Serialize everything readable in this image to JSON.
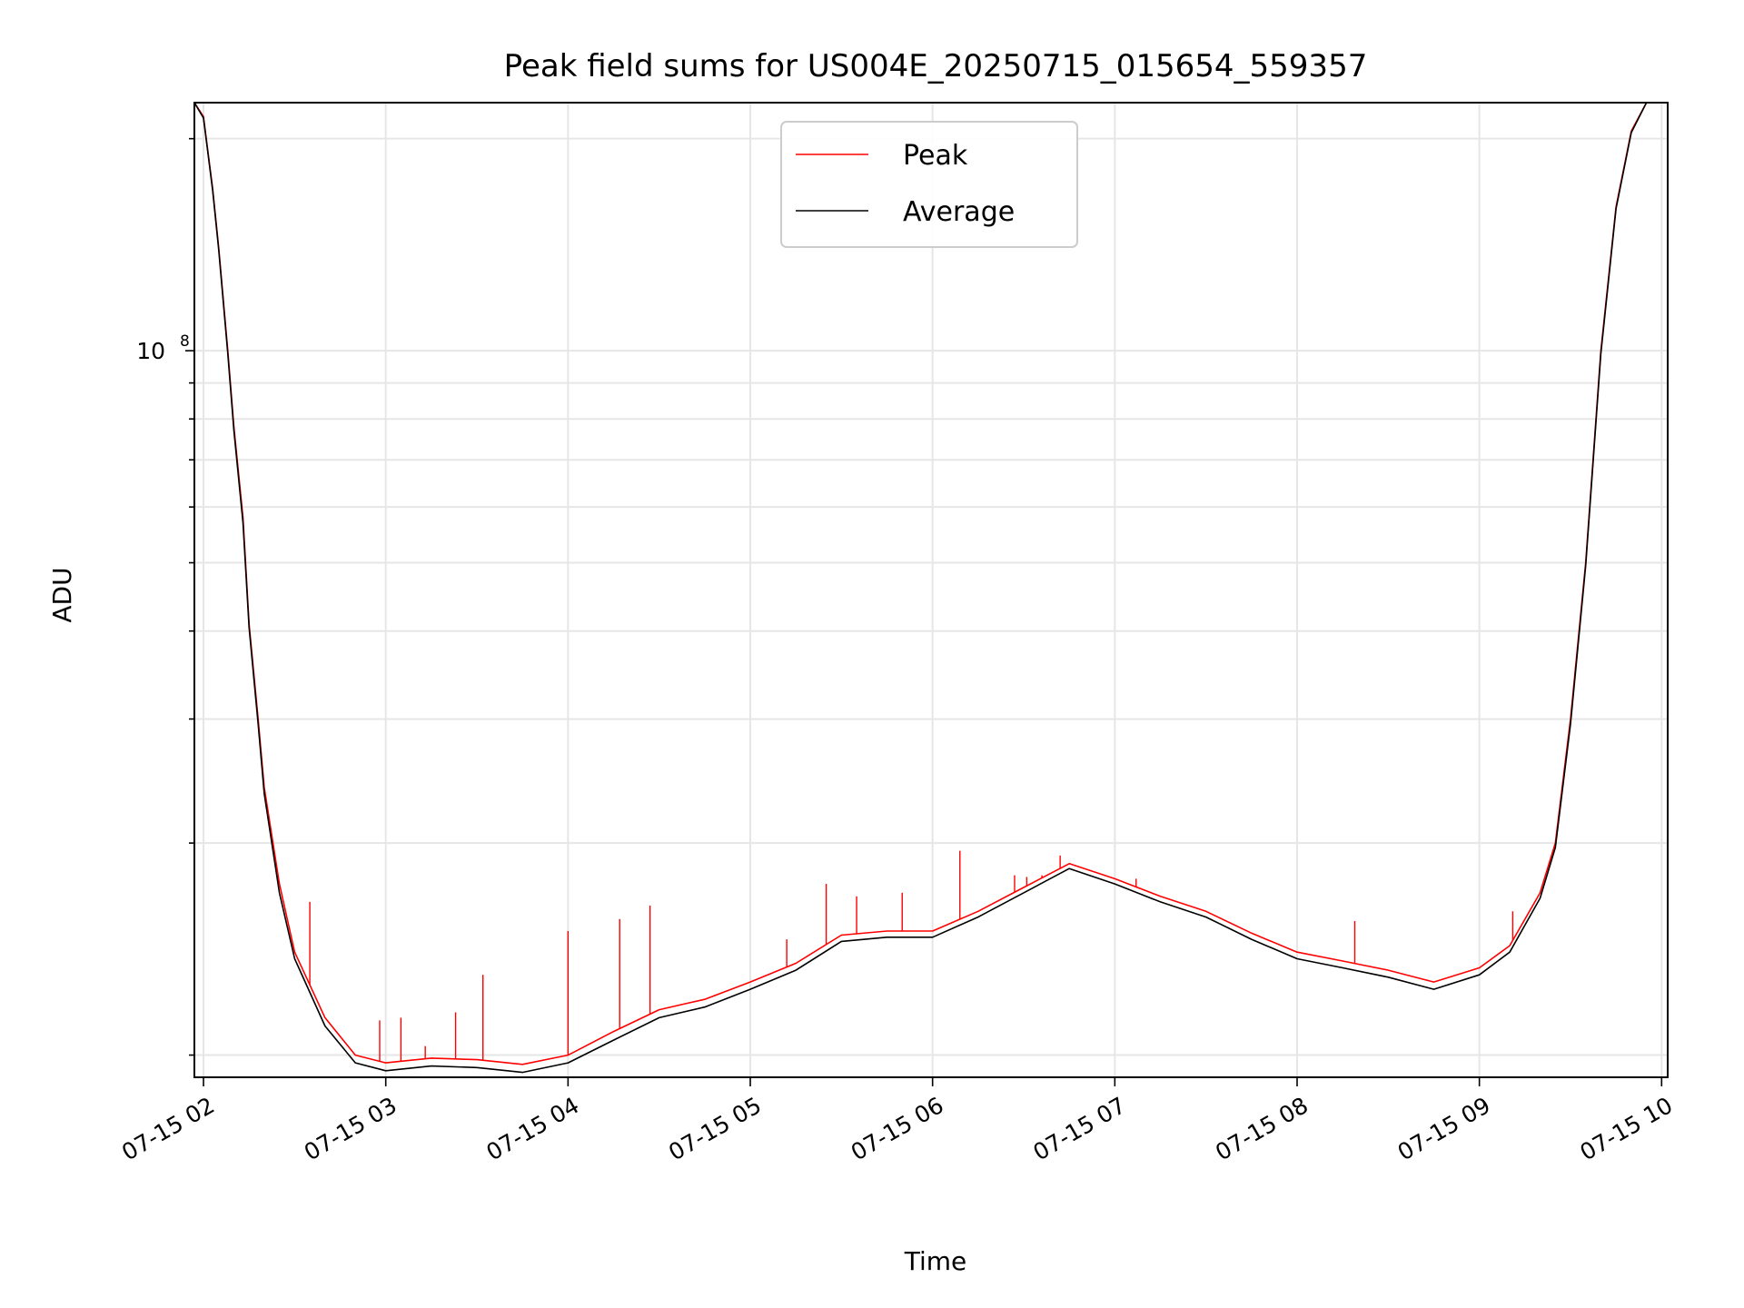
{
  "chart_data": {
    "type": "line",
    "title": "Peak field sums for US004E_20250715_015654_559357",
    "xlabel": "Time",
    "ylabel": "ADU",
    "y_scale": "log",
    "ylim": [
      9300000,
      225000000
    ],
    "xlim": [
      "2025-07-15 01:57",
      "2025-07-15 10:02"
    ],
    "x_ticks": [
      "07-15 02",
      "07-15 03",
      "07-15 04",
      "07-15 05",
      "07-15 06",
      "07-15 07",
      "07-15 08",
      "07-15 09",
      "07-15 10"
    ],
    "y_tick_major": {
      "value": 100000000,
      "base": "10",
      "exp": "8"
    },
    "grid": true,
    "legend": "upper-center",
    "series": [
      {
        "name": "Peak",
        "color": "#ff0000",
        "x": [
          "2025-07-15 01:57",
          "2025-07-15 02:00",
          "2025-07-15 02:03",
          "2025-07-15 02:05",
          "2025-07-15 02:08",
          "2025-07-15 02:10",
          "2025-07-15 02:13",
          "2025-07-15 02:15",
          "2025-07-15 02:18",
          "2025-07-15 02:20",
          "2025-07-15 02:25",
          "2025-07-15 02:30",
          "2025-07-15 02:40",
          "2025-07-15 02:50",
          "2025-07-15 03:00",
          "2025-07-15 03:15",
          "2025-07-15 03:30",
          "2025-07-15 03:45",
          "2025-07-15 04:00",
          "2025-07-15 04:15",
          "2025-07-15 04:30",
          "2025-07-15 04:45",
          "2025-07-15 05:00",
          "2025-07-15 05:15",
          "2025-07-15 05:30",
          "2025-07-15 05:45",
          "2025-07-15 06:00",
          "2025-07-15 06:15",
          "2025-07-15 06:30",
          "2025-07-15 06:45",
          "2025-07-15 07:00",
          "2025-07-15 07:15",
          "2025-07-15 07:30",
          "2025-07-15 07:45",
          "2025-07-15 08:00",
          "2025-07-15 08:15",
          "2025-07-15 08:30",
          "2025-07-15 08:45",
          "2025-07-15 09:00",
          "2025-07-15 09:10",
          "2025-07-15 09:20",
          "2025-07-15 09:25",
          "2025-07-15 09:30",
          "2025-07-15 09:35",
          "2025-07-15 09:40",
          "2025-07-15 09:45",
          "2025-07-15 09:50",
          "2025-07-15 09:55",
          "2025-07-15 10:00"
        ],
        "y": [
          225000000,
          215000000,
          170000000,
          140000000,
          100000000,
          78000000,
          58000000,
          41000000,
          30000000,
          24000000,
          17500000,
          14000000,
          11300000,
          10000000,
          9750000,
          9900000,
          9850000,
          9700000,
          10000000,
          10800000,
          11600000,
          12000000,
          12700000,
          13500000,
          14800000,
          15000000,
          15000000,
          16000000,
          17300000,
          18700000,
          17800000,
          16800000,
          16000000,
          14900000,
          14000000,
          13600000,
          13200000,
          12700000,
          13300000,
          14300000,
          17000000,
          20000000,
          30000000,
          50000000,
          100000000,
          160000000,
          205000000,
          225000000,
          225000000
        ]
      },
      {
        "name": "Average",
        "color": "#000000",
        "x": [
          "2025-07-15 01:57",
          "2025-07-15 02:00",
          "2025-07-15 02:03",
          "2025-07-15 02:05",
          "2025-07-15 02:08",
          "2025-07-15 02:10",
          "2025-07-15 02:13",
          "2025-07-15 02:15",
          "2025-07-15 02:18",
          "2025-07-15 02:20",
          "2025-07-15 02:25",
          "2025-07-15 02:30",
          "2025-07-15 02:40",
          "2025-07-15 02:50",
          "2025-07-15 03:00",
          "2025-07-15 03:15",
          "2025-07-15 03:30",
          "2025-07-15 03:45",
          "2025-07-15 04:00",
          "2025-07-15 04:15",
          "2025-07-15 04:30",
          "2025-07-15 04:45",
          "2025-07-15 05:00",
          "2025-07-15 05:15",
          "2025-07-15 05:30",
          "2025-07-15 05:45",
          "2025-07-15 06:00",
          "2025-07-15 06:15",
          "2025-07-15 06:30",
          "2025-07-15 06:45",
          "2025-07-15 07:00",
          "2025-07-15 07:15",
          "2025-07-15 07:30",
          "2025-07-15 07:45",
          "2025-07-15 08:00",
          "2025-07-15 08:15",
          "2025-07-15 08:30",
          "2025-07-15 08:45",
          "2025-07-15 09:00",
          "2025-07-15 09:10",
          "2025-07-15 09:20",
          "2025-07-15 09:25",
          "2025-07-15 09:30",
          "2025-07-15 09:35",
          "2025-07-15 09:40",
          "2025-07-15 09:45",
          "2025-07-15 09:50",
          "2025-07-15 09:55",
          "2025-07-15 10:00"
        ],
        "y": [
          225000000,
          214000000,
          169000000,
          139000000,
          99000000,
          77000000,
          57000000,
          40500000,
          29500000,
          23500000,
          17000000,
          13700000,
          11000000,
          9750000,
          9500000,
          9650000,
          9600000,
          9450000,
          9750000,
          10500000,
          11300000,
          11700000,
          12400000,
          13200000,
          14500000,
          14700000,
          14700000,
          15700000,
          17000000,
          18400000,
          17500000,
          16500000,
          15700000,
          14600000,
          13700000,
          13300000,
          12900000,
          12400000,
          13000000,
          14000000,
          16700000,
          19700000,
          29500000,
          49500000,
          99000000,
          159000000,
          204000000,
          225000000,
          225000000
        ]
      }
    ],
    "spikes": {
      "series": "Peak",
      "x": [
        "2025-07-15 02:35",
        "2025-07-15 02:58",
        "2025-07-15 03:05",
        "2025-07-15 03:13",
        "2025-07-15 03:23",
        "2025-07-15 03:32",
        "2025-07-15 04:00",
        "2025-07-15 04:17",
        "2025-07-15 04:27",
        "2025-07-15 05:12",
        "2025-07-15 05:25",
        "2025-07-15 05:35",
        "2025-07-15 05:50",
        "2025-07-15 06:09",
        "2025-07-15 06:27",
        "2025-07-15 06:31",
        "2025-07-15 06:36",
        "2025-07-15 06:42",
        "2025-07-15 07:07",
        "2025-07-15 08:19",
        "2025-07-15 09:11"
      ],
      "y": [
        16500000,
        11200000,
        11300000,
        10300000,
        11500000,
        13000000,
        15000000,
        15600000,
        16300000,
        14600000,
        17500000,
        16800000,
        17000000,
        19500000,
        18000000,
        17900000,
        18000000,
        19200000,
        17800000,
        15500000,
        16000000
      ]
    }
  }
}
